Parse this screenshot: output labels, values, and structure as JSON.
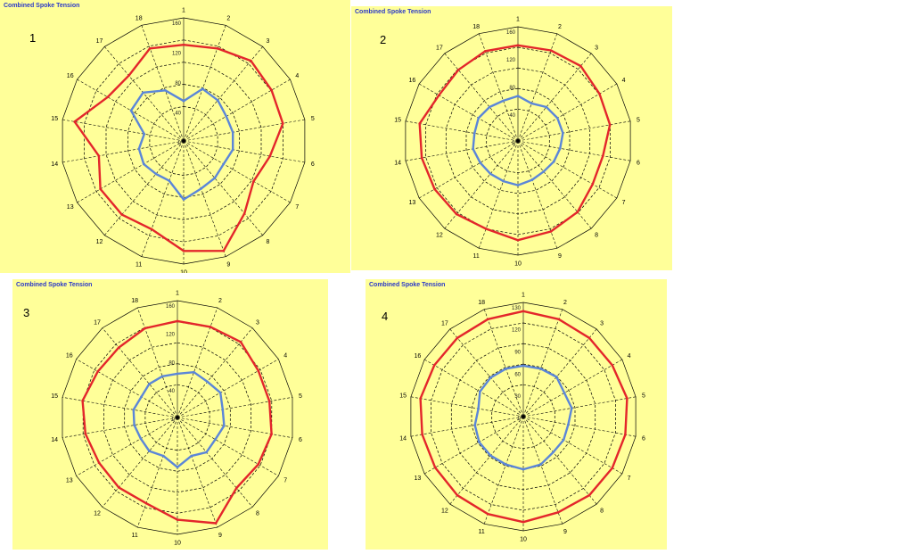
{
  "colors": {
    "background": "#ffff99",
    "outer_series": "#e3262b",
    "inner_series": "#5b86d8",
    "grid": "#000000",
    "title": "#2b39c8"
  },
  "chart_data": [
    {
      "type": "radar",
      "panel_number": "1",
      "title": "Combined Spoke Tension",
      "categories": [
        "1",
        "2",
        "3",
        "4",
        "5",
        "6",
        "7",
        "8",
        "9",
        "10",
        "11",
        "12",
        "13",
        "14",
        "15",
        "16",
        "17",
        "18"
      ],
      "axis_labels": [
        "160",
        "120",
        "80",
        "40",
        "0"
      ],
      "rmax": 160,
      "series": [
        {
          "values": [
            125,
            128,
            136,
            132,
            131,
            114,
            105,
            123,
            152,
            143,
            122,
            125,
            125,
            112,
            144,
            114,
            111,
            128
          ]
        },
        {
          "values": [
            52,
            72,
            69,
            64,
            65,
            65,
            60,
            63,
            66,
            76,
            55,
            56,
            60,
            59,
            52,
            79,
            82,
            70
          ]
        }
      ]
    },
    {
      "type": "radar",
      "panel_number": "2",
      "title": "Combined Spoke Tension",
      "categories": [
        "1",
        "2",
        "3",
        "4",
        "5",
        "6",
        "7",
        "8",
        "9",
        "10",
        "11",
        "12",
        "13",
        "14",
        "15",
        "16",
        "17",
        "18"
      ],
      "axis_labels": [
        "160",
        "120",
        "80",
        "40",
        "0"
      ],
      "rmax": 160,
      "series": [
        {
          "values": [
            134,
            135,
            137,
            132,
            131,
            121,
            121,
            130,
            135,
            139,
            131,
            134,
            135,
            137,
            140,
            128,
            130,
            134
          ]
        },
        {
          "values": [
            63,
            56,
            62,
            64,
            64,
            60,
            58,
            56,
            58,
            62,
            60,
            60,
            61,
            64,
            62,
            64,
            62,
            60
          ]
        }
      ]
    },
    {
      "type": "radar",
      "panel_number": "3",
      "title": "Combined Spoke Tension",
      "categories": [
        "1",
        "2",
        "3",
        "4",
        "5",
        "6",
        "7",
        "8",
        "9",
        "10",
        "11",
        "12",
        "13",
        "14",
        "15",
        "16",
        "17",
        "18"
      ],
      "axis_labels": [
        "160",
        "120",
        "80",
        "40",
        "0"
      ],
      "rmax": 160,
      "series": [
        {
          "values": [
            132,
            132,
            135,
            128,
            128,
            131,
            128,
            126,
            154,
            140,
            125,
            125,
            124,
            128,
            132,
            126,
            125,
            130
          ]
        },
        {
          "values": [
            60,
            66,
            64,
            68,
            63,
            65,
            60,
            62,
            56,
            68,
            56,
            60,
            58,
            60,
            61,
            57,
            60,
            60
          ]
        }
      ]
    },
    {
      "type": "radar",
      "panel_number": "4",
      "title": "Combined Spoke Tension",
      "categories": [
        "1",
        "2",
        "3",
        "4",
        "5",
        "6",
        "7",
        "8",
        "9",
        "10",
        "11",
        "12",
        "13",
        "14",
        "15",
        "16",
        "17",
        "18"
      ],
      "axis_labels": [
        "130",
        "120",
        "90",
        "60",
        "30",
        "0"
      ],
      "rmax": 130,
      "series": [
        {
          "values": [
            120,
            118,
            117,
            117,
            120,
            118,
            117,
            117,
            116,
            120,
            118,
            117,
            116,
            117,
            119,
            117,
            117,
            118
          ]
        },
        {
          "values": [
            58,
            58,
            59,
            54,
            56,
            52,
            53,
            53,
            58,
            60,
            58,
            58,
            58,
            56,
            52,
            57,
            58,
            58
          ]
        }
      ]
    }
  ]
}
